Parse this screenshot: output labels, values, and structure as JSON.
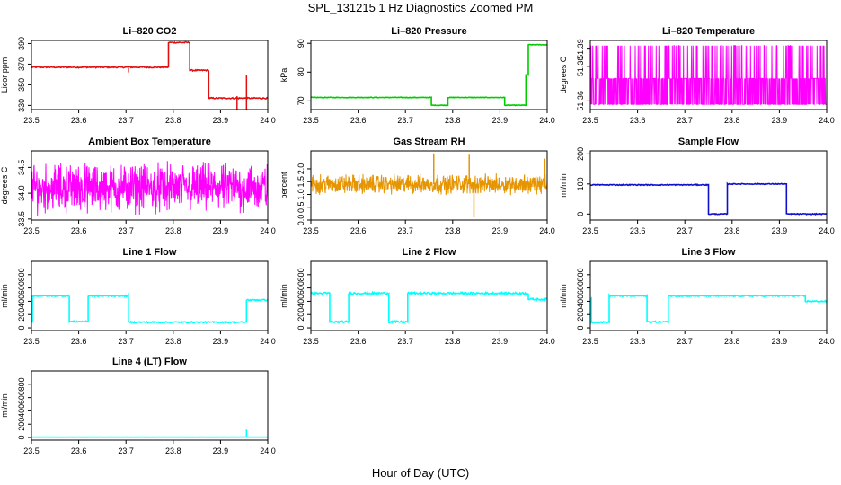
{
  "figure": {
    "title": "SPL_131215  1 Hz Diagnostics Zoomed PM",
    "xlabel": "Hour of Day (UTC)"
  },
  "chart_data": [
    {
      "type": "line",
      "title": "Li–820 CO2",
      "ylabel": "Licor ppm",
      "color": "#e01010",
      "xlim": [
        23.5,
        24.0
      ],
      "xticks": [
        23.5,
        23.6,
        23.7,
        23.8,
        23.9,
        24.0
      ],
      "ylim": [
        326,
        393
      ],
      "yticks": [
        330,
        350,
        370,
        390
      ],
      "segments": [
        [
          23.5,
          23.79,
          367
        ],
        [
          23.79,
          23.835,
          391
        ],
        [
          23.835,
          23.875,
          364
        ],
        [
          23.875,
          24.0,
          337
        ]
      ],
      "spikes": [
        [
          23.705,
          366,
          362
        ],
        [
          23.955,
          321,
          359
        ],
        [
          23.935,
          339,
          326
        ]
      ],
      "noise": 0.6
    },
    {
      "type": "line",
      "title": "Li–820 Pressure",
      "ylabel": "kPa",
      "color": "#00cc00",
      "xlim": [
        23.5,
        24.0
      ],
      "xticks": [
        23.5,
        23.6,
        23.7,
        23.8,
        23.9,
        24.0
      ],
      "ylim": [
        67,
        91
      ],
      "yticks": [
        70,
        80,
        90
      ],
      "segments": [
        [
          23.5,
          23.755,
          71.2
        ],
        [
          23.755,
          23.79,
          68.5
        ],
        [
          23.79,
          23.91,
          71.2
        ],
        [
          23.91,
          23.955,
          68.5
        ],
        [
          23.955,
          23.96,
          79
        ],
        [
          23.96,
          24.0,
          89.5
        ]
      ],
      "noise": 0.1
    },
    {
      "type": "line",
      "title": "Li–820 Temperature",
      "ylabel": "degrees C",
      "color": "#ff00ff",
      "xlim": [
        23.5,
        24.0
      ],
      "xticks": [
        23.5,
        23.6,
        23.7,
        23.8,
        23.9,
        24.0
      ],
      "ylim": [
        51.355,
        51.395
      ],
      "yticks": [
        51.36,
        51.38,
        51.39
      ],
      "pattern": "binary-flicker",
      "levels": [
        51.358,
        51.373,
        51.392
      ]
    },
    {
      "type": "line",
      "title": "Ambient Box Temperature",
      "ylabel": "degrees C",
      "color": "#ff00ff",
      "xlim": [
        23.5,
        24.0
      ],
      "xticks": [
        23.5,
        23.6,
        23.7,
        23.8,
        23.9,
        24.0
      ],
      "ylim": [
        33.48,
        34.82
      ],
      "yticks": [
        33.5,
        34.0,
        34.5
      ],
      "pattern": "dense-noise",
      "center": 34.1,
      "amplitude": 0.55
    },
    {
      "type": "line",
      "title": "Gas Stream RH",
      "ylabel": "percent",
      "color": "#e69500",
      "xlim": [
        23.5,
        24.0
      ],
      "xticks": [
        23.5,
        23.6,
        23.7,
        23.8,
        23.9,
        24.0
      ],
      "ylim": [
        0.0,
        2.7
      ],
      "yticks": [
        0.0,
        0.5,
        1.0,
        1.5,
        2.0
      ],
      "pattern": "dense-noise",
      "center": 1.4,
      "amplitude": 0.45,
      "spikes": [
        [
          23.76,
          1.4,
          2.6
        ],
        [
          23.835,
          1.4,
          2.55
        ],
        [
          23.845,
          0.1,
          1.4
        ],
        [
          23.995,
          1.4,
          2.4
        ]
      ]
    },
    {
      "type": "line",
      "title": "Sample Flow",
      "ylabel": "ml/min",
      "color": "#1010cc",
      "xlim": [
        23.5,
        24.0
      ],
      "xticks": [
        23.5,
        23.6,
        23.7,
        23.8,
        23.9,
        24.0
      ],
      "ylim": [
        -20,
        210
      ],
      "yticks": [
        0,
        100,
        200
      ],
      "segments": [
        [
          23.5,
          23.75,
          97
        ],
        [
          23.75,
          23.79,
          0
        ],
        [
          23.79,
          23.915,
          100
        ],
        [
          23.915,
          24.0,
          0
        ]
      ],
      "noise": 1.5
    },
    {
      "type": "line",
      "title": "Line 1 Flow",
      "ylabel": "ml/min",
      "color": "#00ffff",
      "xlim": [
        23.5,
        24.0
      ],
      "xticks": [
        23.5,
        23.6,
        23.7,
        23.8,
        23.9,
        24.0
      ],
      "ylim": [
        -40,
        1000
      ],
      "yticks": [
        0,
        200,
        400,
        600,
        800
      ],
      "segments": [
        [
          23.5,
          23.502,
          90
        ],
        [
          23.502,
          23.58,
          480
        ],
        [
          23.58,
          23.62,
          95
        ],
        [
          23.62,
          23.705,
          480
        ],
        [
          23.705,
          23.955,
          85
        ],
        [
          23.955,
          24.0,
          420
        ]
      ],
      "noise": 10
    },
    {
      "type": "line",
      "title": "Line 2 Flow",
      "ylabel": "ml/min",
      "color": "#00ffff",
      "xlim": [
        23.5,
        24.0
      ],
      "xticks": [
        23.5,
        23.6,
        23.7,
        23.8,
        23.9,
        24.0
      ],
      "ylim": [
        -40,
        1000
      ],
      "yticks": [
        0,
        200,
        400,
        600,
        800
      ],
      "segments": [
        [
          23.5,
          23.54,
          520
        ],
        [
          23.54,
          23.58,
          90
        ],
        [
          23.58,
          23.665,
          520
        ],
        [
          23.665,
          23.705,
          90
        ],
        [
          23.705,
          23.96,
          520
        ],
        [
          23.96,
          24.0,
          430
        ]
      ],
      "noise": 14
    },
    {
      "type": "line",
      "title": "Line 3 Flow",
      "ylabel": "ml/min",
      "color": "#00ffff",
      "xlim": [
        23.5,
        24.0
      ],
      "xticks": [
        23.5,
        23.6,
        23.7,
        23.8,
        23.9,
        24.0
      ],
      "ylim": [
        -40,
        1000
      ],
      "yticks": [
        0,
        200,
        400,
        600,
        800
      ],
      "segments": [
        [
          23.5,
          23.502,
          440
        ],
        [
          23.502,
          23.54,
          85
        ],
        [
          23.54,
          23.62,
          480
        ],
        [
          23.62,
          23.665,
          90
        ],
        [
          23.665,
          23.955,
          480
        ],
        [
          23.955,
          24.0,
          400
        ]
      ],
      "noise": 10
    },
    {
      "type": "line",
      "title": "Line 4 (LT) Flow",
      "ylabel": "ml/min",
      "color": "#00ffff",
      "xlim": [
        23.5,
        24.0
      ],
      "xticks": [
        23.5,
        23.6,
        23.7,
        23.8,
        23.9,
        24.0
      ],
      "ylim": [
        -40,
        1000
      ],
      "yticks": [
        0,
        200,
        400,
        600,
        800
      ],
      "segments": [
        [
          23.5,
          24.0,
          5
        ]
      ],
      "spikes": [
        [
          23.955,
          5,
          120
        ]
      ],
      "noise": 1
    }
  ]
}
